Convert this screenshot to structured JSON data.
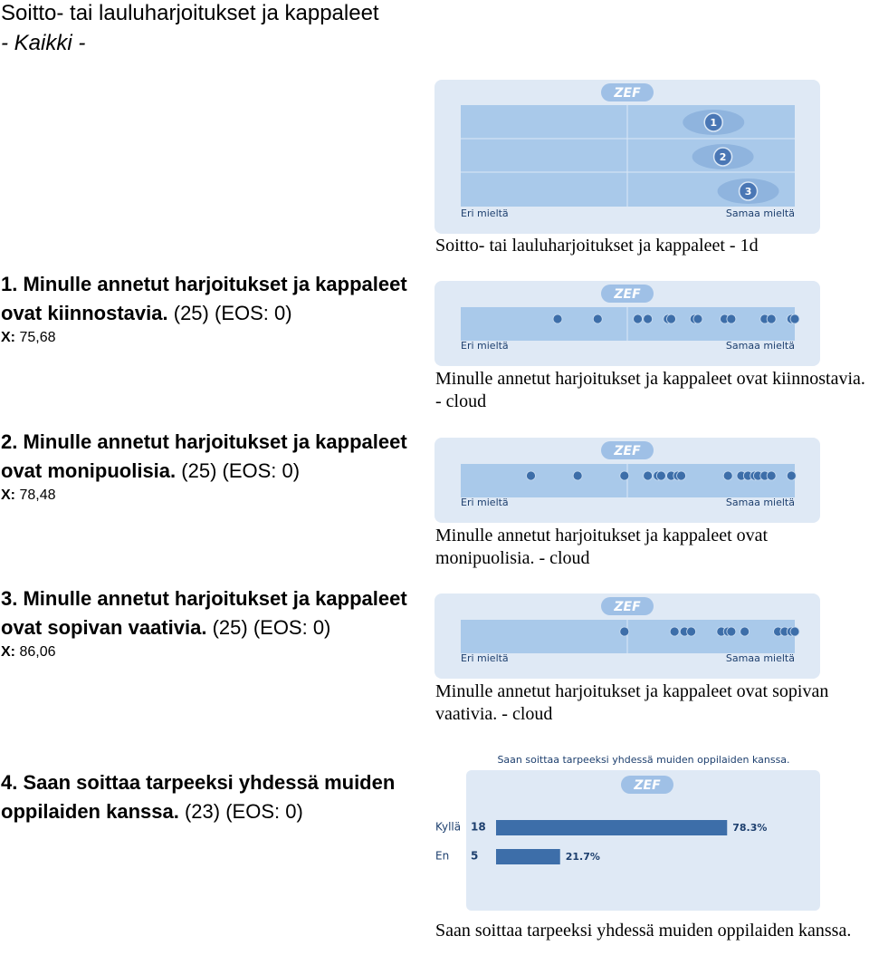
{
  "header": {
    "title": "Soitto- tai lauluharjoitukset ja kappaleet",
    "subtitle": "- Kaikki -"
  },
  "questions": [
    {
      "text": "1. Minulle annetut harjoitukset ja kappaleet ovat kiinnostavia.",
      "count": "(25)",
      "eos": "(EOS: 0)",
      "x_label": "X:",
      "x_value": "75,68"
    },
    {
      "text": "2. Minulle annetut harjoitukset ja kappaleet ovat monipuolisia.",
      "count": "(25)",
      "eos": "(EOS: 0)",
      "x_label": "X:",
      "x_value": "78,48"
    },
    {
      "text": "3. Minulle annetut harjoitukset ja kappaleet ovat sopivan vaativia.",
      "count": "(25)",
      "eos": "(EOS: 0)",
      "x_label": "X:",
      "x_value": "86,06"
    },
    {
      "text": "4. Saan soittaa tarpeeksi yhdessä muiden oppilaiden kanssa.",
      "count": "(23)",
      "eos": "(EOS: 0)"
    }
  ],
  "figures": [
    {
      "type": "bubble",
      "logo": "ZEF",
      "left_label": "Eri mieltä",
      "right_label": "Samaa mieltä",
      "xlim": [
        0,
        100
      ],
      "points": [
        {
          "label": "1",
          "x": 75.68
        },
        {
          "label": "2",
          "x": 78.48
        },
        {
          "label": "3",
          "x": 86.06
        }
      ],
      "caption": "Soitto- tai lauluharjoitukset ja kappaleet - 1d"
    },
    {
      "type": "cloud",
      "logo": "ZEF",
      "left_label": "Eri mieltä",
      "right_label": "Samaa mieltä",
      "xlim": [
        0,
        100
      ],
      "values": [
        29,
        41,
        53,
        56,
        62,
        63,
        70,
        71,
        79,
        81,
        91,
        93,
        99,
        100
      ],
      "caption": "Minulle annetut harjoitukset ja kappaleet ovat kiinnostavia. - cloud"
    },
    {
      "type": "cloud",
      "logo": "ZEF",
      "left_label": "Eri mieltä",
      "right_label": "Samaa mieltä",
      "xlim": [
        0,
        100
      ],
      "values": [
        21,
        35,
        49,
        56,
        59,
        60,
        63,
        65,
        66,
        80,
        84,
        86,
        88,
        89,
        91,
        93,
        99
      ],
      "caption": "Minulle annetut harjoitukset ja kappaleet ovat monipuolisia. - cloud"
    },
    {
      "type": "cloud",
      "logo": "ZEF",
      "left_label": "Eri mieltä",
      "right_label": "Samaa mieltä",
      "xlim": [
        0,
        100
      ],
      "values": [
        49,
        64,
        67,
        69,
        78,
        80,
        81,
        85,
        95,
        97,
        99,
        100
      ],
      "caption": "Minulle annetut harjoitukset ja kappaleet ovat sopivan vaativia. - cloud"
    },
    {
      "type": "bar",
      "title": "Saan soittaa tarpeeksi yhdessä muiden oppilaiden kanssa.",
      "logo": "ZEF",
      "xlim": [
        0,
        100
      ],
      "categories": [
        "Kyllä",
        "En"
      ],
      "counts": [
        18,
        5
      ],
      "values": [
        78.3,
        21.7
      ],
      "value_labels": [
        "78.3%",
        "21.7%"
      ],
      "caption": "Saan soittaa tarpeeksi yhdessä muiden oppilaiden kanssa."
    }
  ]
}
